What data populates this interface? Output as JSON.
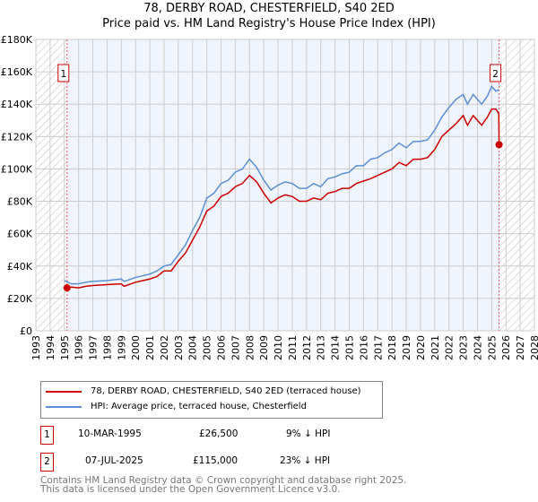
{
  "title": "78, DERBY ROAD, CHESTERFIELD, S40 2ED",
  "subtitle": "Price paid vs. HM Land Registry's House Price Index (HPI)",
  "chart_data": {
    "type": "line",
    "xlim": [
      1993,
      2028
    ],
    "ylim": [
      0,
      180000
    ],
    "x_ticks": [
      "1993",
      "1994",
      "1995",
      "1996",
      "1997",
      "1998",
      "1999",
      "2000",
      "2001",
      "2002",
      "2003",
      "2004",
      "2005",
      "2006",
      "2007",
      "2008",
      "2009",
      "2010",
      "2011",
      "2012",
      "2013",
      "2014",
      "2015",
      "2016",
      "2017",
      "2018",
      "2019",
      "2020",
      "2021",
      "2022",
      "2023",
      "2024",
      "2025",
      "2026",
      "2027",
      "2028"
    ],
    "y_ticks": [
      "£0",
      "£20K",
      "£40K",
      "£60K",
      "£80K",
      "£100K",
      "£120K",
      "£140K",
      "£160K",
      "£180K"
    ],
    "series": [
      {
        "name": "78, DERBY ROAD, CHESTERFIELD, S40 2ED (terraced house)",
        "color": "#cc0000",
        "x": [
          1995.19,
          1995.5,
          1996,
          1996.5,
          1997,
          1998,
          1999,
          1999.2,
          2000,
          2001,
          2001.5,
          2002,
          2002.5,
          2003,
          2003.5,
          2004,
          2004.5,
          2005,
          2005.5,
          2006,
          2006.5,
          2007,
          2007.5,
          2008,
          2008.5,
          2009,
          2009.5,
          2010,
          2010.5,
          2011,
          2011.5,
          2012,
          2012.5,
          2013,
          2013.5,
          2014,
          2014.5,
          2015,
          2015.5,
          2016,
          2016.5,
          2017,
          2017.5,
          2018,
          2018.5,
          2019,
          2019.5,
          2020,
          2020.5,
          2021,
          2021.5,
          2022,
          2022.5,
          2023,
          2023.3,
          2023.7,
          2024,
          2024.3,
          2024.7,
          2025,
          2025.3,
          2025.5,
          2025.52
        ],
        "y": [
          26500,
          27000,
          26500,
          27500,
          28000,
          28500,
          29000,
          27500,
          30000,
          32000,
          33500,
          37000,
          37000,
          43000,
          48000,
          56000,
          64000,
          74000,
          77000,
          83000,
          85000,
          89000,
          91000,
          96000,
          92000,
          85000,
          79000,
          82000,
          84000,
          83000,
          80000,
          80000,
          82000,
          81000,
          85000,
          86000,
          88000,
          88000,
          91000,
          92500,
          94000,
          96000,
          98000,
          100000,
          104000,
          102000,
          106000,
          106000,
          107000,
          112000,
          120000,
          124000,
          128000,
          133000,
          127000,
          133000,
          130000,
          127000,
          132000,
          137000,
          137000,
          134000,
          115000
        ]
      },
      {
        "name": "HPI: Average price, terraced house, Chesterfield",
        "color": "#5b8fd4",
        "x": [
          1995.0,
          1995.5,
          1996,
          1996.5,
          1997,
          1998,
          1999,
          1999.2,
          2000,
          2001,
          2001.5,
          2002,
          2002.5,
          2003,
          2003.5,
          2004,
          2004.5,
          2005,
          2005.5,
          2006,
          2006.5,
          2007,
          2007.5,
          2008,
          2008.5,
          2009,
          2009.5,
          2010,
          2010.5,
          2011,
          2011.5,
          2012,
          2012.5,
          2013,
          2013.5,
          2014,
          2014.5,
          2015,
          2015.5,
          2016,
          2016.5,
          2017,
          2017.5,
          2018,
          2018.5,
          2019,
          2019.5,
          2020,
          2020.5,
          2021,
          2021.5,
          2022,
          2022.5,
          2023,
          2023.3,
          2023.7,
          2024,
          2024.3,
          2024.7,
          2025,
          2025.3,
          2025.5
        ],
        "y": [
          31000,
          29000,
          29000,
          30000,
          30500,
          31000,
          32000,
          30500,
          33000,
          35000,
          37000,
          40000,
          41000,
          47000,
          53000,
          62000,
          70000,
          82000,
          85000,
          91000,
          93000,
          98000,
          100000,
          106000,
          101000,
          93000,
          87000,
          90000,
          92000,
          91000,
          88000,
          88000,
          91000,
          89000,
          94000,
          95000,
          97000,
          98000,
          102000,
          102000,
          106000,
          107000,
          110000,
          112000,
          116000,
          113000,
          117000,
          117000,
          118000,
          124000,
          132000,
          138000,
          143000,
          146000,
          140000,
          146000,
          143000,
          140000,
          145000,
          151000,
          148000,
          149000
        ]
      }
    ],
    "markers": [
      {
        "label": "1",
        "x": 1995.19,
        "y": 26500
      },
      {
        "label": "2",
        "x": 2025.52,
        "y": 115000
      }
    ],
    "grid": true,
    "legend": "bottom"
  },
  "transactions": [
    {
      "n": "1",
      "date": "10-MAR-1995",
      "price": "£26,500",
      "hpi": "9% ↓ HPI"
    },
    {
      "n": "2",
      "date": "07-JUL-2025",
      "price": "£115,000",
      "hpi": "23% ↓ HPI"
    }
  ],
  "footer": [
    "Contains HM Land Registry data © Crown copyright and database right 2025.",
    "This data is licensed under the Open Government Licence v3.0."
  ]
}
